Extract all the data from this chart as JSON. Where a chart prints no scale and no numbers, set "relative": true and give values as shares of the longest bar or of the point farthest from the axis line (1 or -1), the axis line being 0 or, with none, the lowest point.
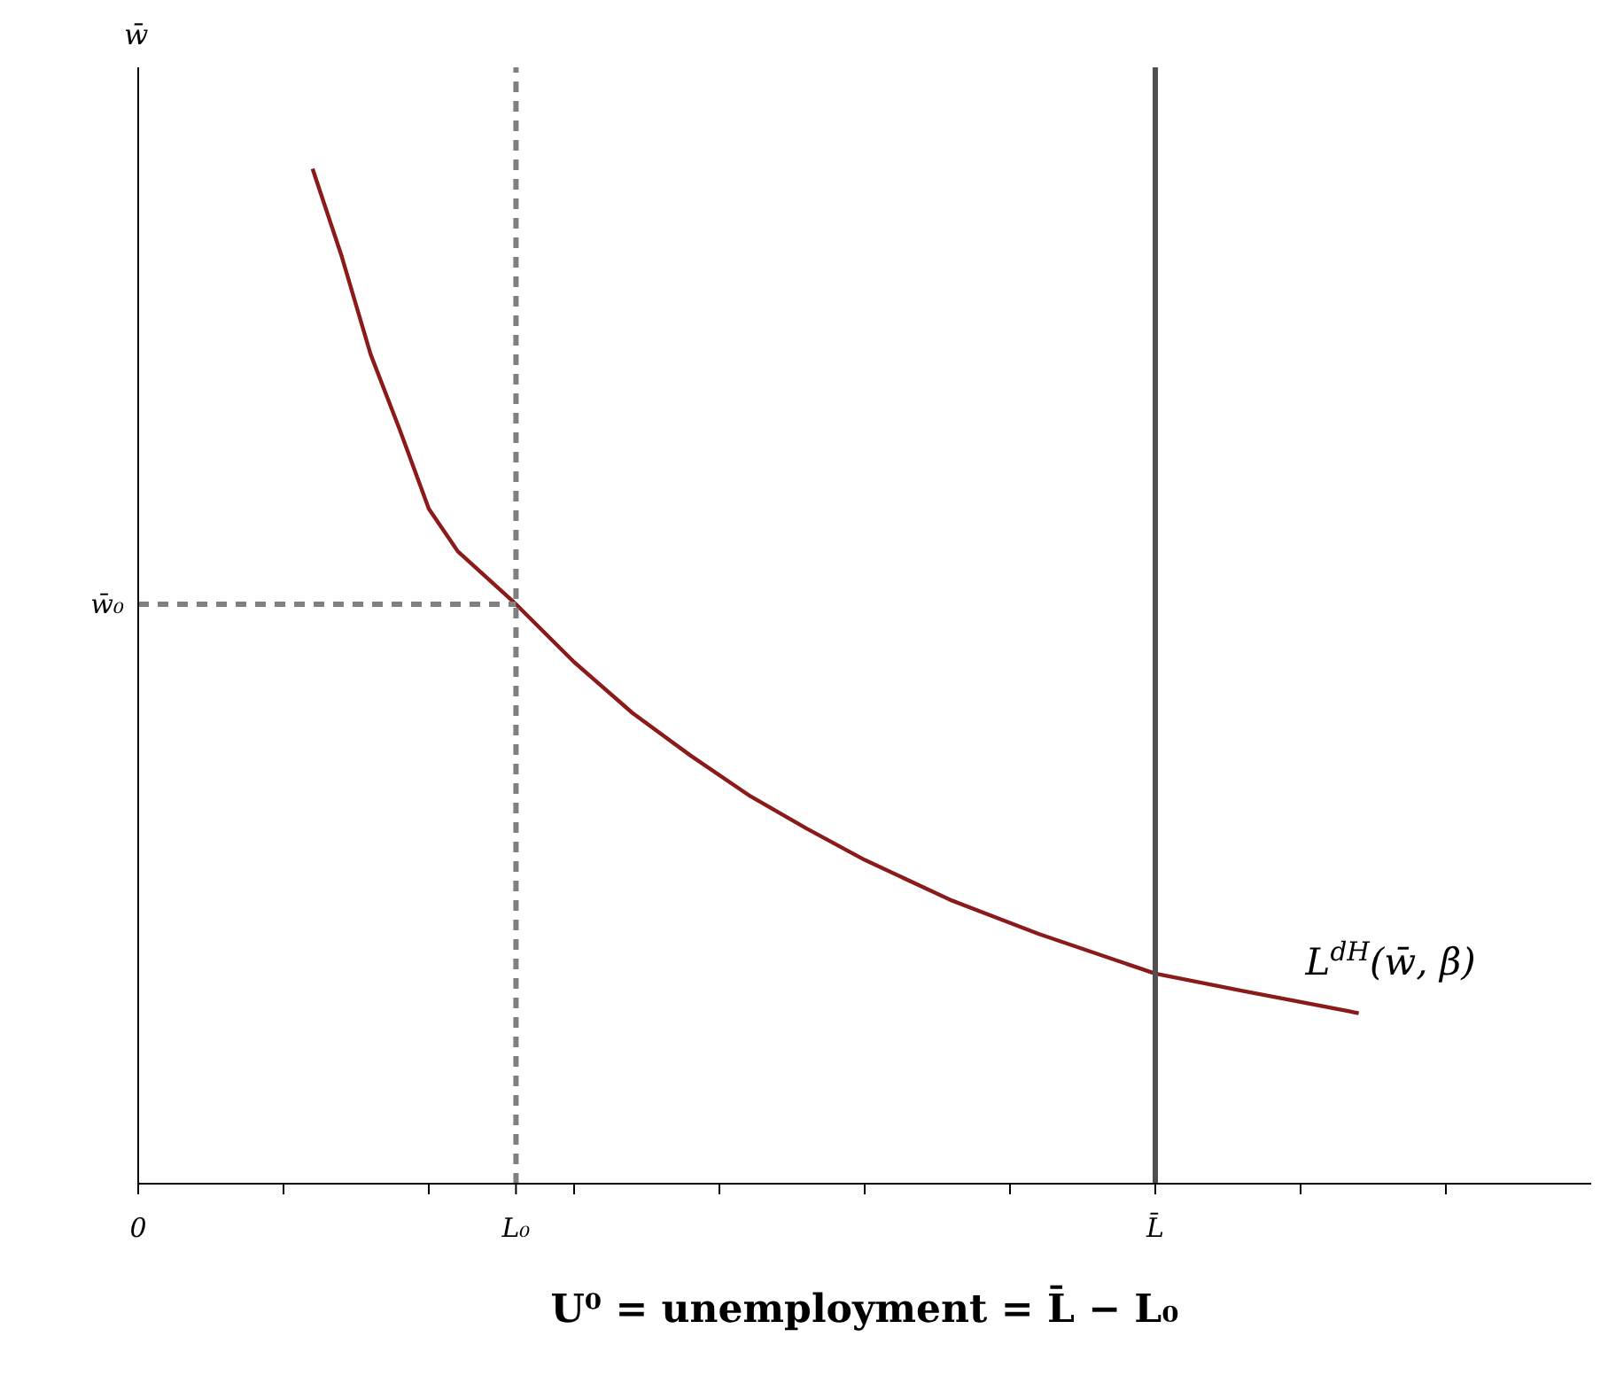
{
  "chart_data": {
    "type": "line",
    "relative": true,
    "xlabel": "U⁰ = unemployment = L̄ − L₀",
    "ylabel": "w̄",
    "categories": [
      "0",
      null,
      null,
      null,
      null,
      null,
      null,
      null,
      null,
      null,
      null,
      null,
      null,
      "L₀",
      null,
      null,
      null,
      null,
      null,
      null,
      null,
      null,
      null,
      null,
      null,
      null,
      null,
      null,
      null,
      null,
      null,
      null,
      null,
      null,
      null,
      "L̄",
      null,
      null,
      null,
      null,
      null,
      null,
      null,
      null,
      null,
      null,
      null,
      null,
      null,
      null
    ],
    "series": [
      {
        "color": "#8b1a1a",
        "line_style": "solid",
        "values": [
          null,
          null,
          null,
          null,
          null,
          null,
          1,
          0.914,
          0.817,
          0.743,
          0.665,
          0.623,
          null,
          0.571,
          null,
          0.514,
          null,
          0.464,
          null,
          0.422,
          null,
          0.383,
          null,
          0.35,
          null,
          0.319,
          null,
          null,
          0.279,
          null,
          null,
          0.246,
          null,
          null,
          null,
          0.207,
          null,
          null,
          0.19,
          null,
          null,
          null,
          0.168,
          null,
          null,
          null,
          null,
          null,
          null,
          null
        ]
      },
      {
        "color": "#808080",
        "line_style": "dashed",
        "values": [
          0.571,
          0.571,
          0.571,
          0.571,
          0.571,
          0.571,
          0.571,
          0.571,
          0.571,
          0.571,
          0.571,
          0.571,
          0.571,
          0.571,
          null,
          null,
          null,
          null,
          null,
          null,
          null,
          null,
          null,
          null,
          null,
          null,
          null,
          null,
          null,
          null,
          null,
          null,
          null,
          null,
          null,
          null,
          null,
          null,
          null,
          null,
          null,
          null,
          null,
          null,
          null,
          null,
          null,
          null,
          null,
          null
        ]
      }
    ],
    "ref_lines": [
      {
        "axis": "x",
        "value": "L₀",
        "color": "#808080",
        "line_style": "dashed"
      },
      {
        "axis": "x",
        "value": "L̄",
        "color": "#505050",
        "line_style": "solid"
      }
    ],
    "annotations": [
      "L$^{dH}$(w̄, β)",
      "w̄₀"
    ],
    "marker": "none",
    "grid": false,
    "legend": false
  }
}
